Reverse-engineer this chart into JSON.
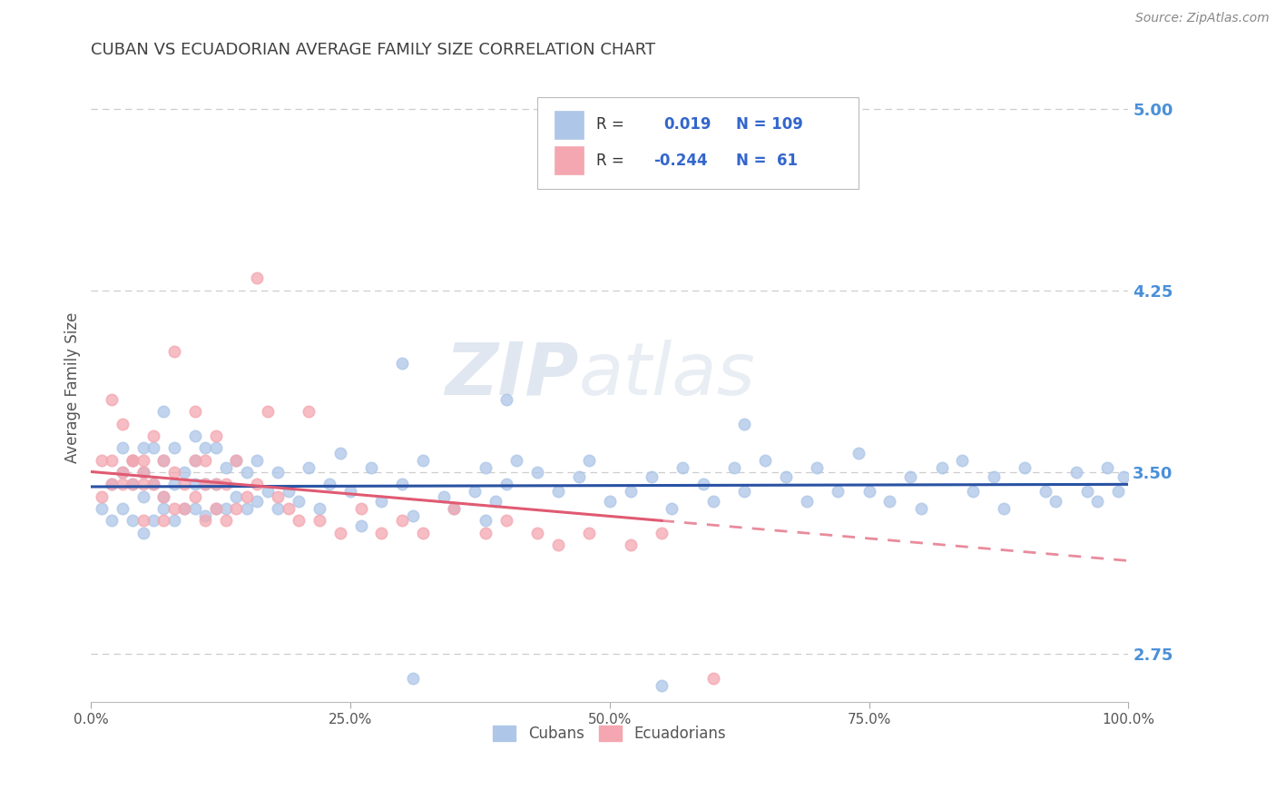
{
  "title": "CUBAN VS ECUADORIAN AVERAGE FAMILY SIZE CORRELATION CHART",
  "source_text": "Source: ZipAtlas.com",
  "ylabel": "Average Family Size",
  "xlim": [
    0.0,
    1.0
  ],
  "ylim": [
    2.55,
    5.15
  ],
  "yticks": [
    2.75,
    3.5,
    4.25,
    5.0
  ],
  "xticks": [
    0.0,
    0.25,
    0.5,
    0.75,
    1.0
  ],
  "xticklabels": [
    "0.0%",
    "25.0%",
    "50.0%",
    "75.0%",
    "100.0%"
  ],
  "yticklabels_right": [
    "2.75",
    "3.50",
    "4.25",
    "5.00"
  ],
  "cuban_R": 0.019,
  "cuban_N": 109,
  "ecuadorian_R": -0.244,
  "ecuadorian_N": 61,
  "cuban_color": "#aec6e8",
  "ecuadorian_color": "#f4a7b0",
  "cuban_line_color": "#2952a3",
  "ecuadorian_line_color": "#e05a72",
  "background_color": "#ffffff",
  "grid_color": "#c8c8c8",
  "title_color": "#404040",
  "axis_label_color": "#555555",
  "right_tick_color": "#4a90d9",
  "watermark_color": "#d0dce8",
  "legend_R_color": "#3366cc",
  "legend_text_color": "#333333",
  "cuban_scatter_x": [
    0.01,
    0.02,
    0.02,
    0.03,
    0.03,
    0.03,
    0.04,
    0.04,
    0.04,
    0.05,
    0.05,
    0.05,
    0.05,
    0.06,
    0.06,
    0.06,
    0.07,
    0.07,
    0.07,
    0.07,
    0.08,
    0.08,
    0.08,
    0.09,
    0.09,
    0.1,
    0.1,
    0.1,
    0.1,
    0.11,
    0.11,
    0.11,
    0.12,
    0.12,
    0.12,
    0.13,
    0.13,
    0.14,
    0.14,
    0.15,
    0.15,
    0.16,
    0.16,
    0.17,
    0.18,
    0.18,
    0.19,
    0.2,
    0.21,
    0.22,
    0.23,
    0.24,
    0.25,
    0.26,
    0.27,
    0.28,
    0.3,
    0.31,
    0.32,
    0.34,
    0.35,
    0.37,
    0.38,
    0.39,
    0.4,
    0.41,
    0.43,
    0.45,
    0.47,
    0.48,
    0.5,
    0.52,
    0.54,
    0.56,
    0.57,
    0.59,
    0.6,
    0.62,
    0.63,
    0.65,
    0.67,
    0.69,
    0.7,
    0.72,
    0.74,
    0.75,
    0.77,
    0.79,
    0.8,
    0.82,
    0.84,
    0.85,
    0.87,
    0.88,
    0.9,
    0.92,
    0.93,
    0.95,
    0.96,
    0.97,
    0.98,
    0.99,
    0.995,
    0.3,
    0.55,
    0.4,
    0.38,
    0.63,
    0.31
  ],
  "cuban_scatter_y": [
    3.35,
    3.3,
    3.45,
    3.35,
    3.5,
    3.6,
    3.3,
    3.45,
    3.55,
    3.25,
    3.4,
    3.5,
    3.6,
    3.3,
    3.45,
    3.6,
    3.35,
    3.4,
    3.55,
    3.75,
    3.3,
    3.45,
    3.6,
    3.35,
    3.5,
    3.35,
    3.45,
    3.55,
    3.65,
    3.32,
    3.45,
    3.6,
    3.35,
    3.45,
    3.6,
    3.35,
    3.52,
    3.4,
    3.55,
    3.35,
    3.5,
    3.38,
    3.55,
    3.42,
    3.35,
    3.5,
    3.42,
    3.38,
    3.52,
    3.35,
    3.45,
    3.58,
    3.42,
    3.28,
    3.52,
    3.38,
    3.45,
    3.32,
    3.55,
    3.4,
    3.35,
    3.42,
    3.52,
    3.38,
    3.45,
    3.55,
    3.5,
    3.42,
    3.48,
    3.55,
    3.38,
    3.42,
    3.48,
    3.35,
    3.52,
    3.45,
    3.38,
    3.52,
    3.42,
    3.55,
    3.48,
    3.38,
    3.52,
    3.42,
    3.58,
    3.42,
    3.38,
    3.48,
    3.35,
    3.52,
    3.55,
    3.42,
    3.48,
    3.35,
    3.52,
    3.42,
    3.38,
    3.5,
    3.42,
    3.38,
    3.52,
    3.42,
    3.48,
    3.95,
    2.62,
    3.8,
    3.3,
    3.7,
    2.65
  ],
  "ecuadorian_scatter_x": [
    0.01,
    0.01,
    0.02,
    0.02,
    0.02,
    0.03,
    0.03,
    0.03,
    0.04,
    0.04,
    0.04,
    0.05,
    0.05,
    0.05,
    0.05,
    0.06,
    0.06,
    0.07,
    0.07,
    0.07,
    0.08,
    0.08,
    0.08,
    0.09,
    0.09,
    0.1,
    0.1,
    0.1,
    0.11,
    0.11,
    0.11,
    0.12,
    0.12,
    0.12,
    0.13,
    0.13,
    0.14,
    0.14,
    0.15,
    0.16,
    0.16,
    0.17,
    0.18,
    0.19,
    0.2,
    0.21,
    0.22,
    0.24,
    0.26,
    0.28,
    0.3,
    0.32,
    0.35,
    0.38,
    0.4,
    0.43,
    0.45,
    0.48,
    0.52,
    0.55,
    0.6
  ],
  "ecuadorian_scatter_y": [
    3.4,
    3.55,
    3.55,
    3.8,
    3.45,
    3.5,
    3.7,
    3.45,
    3.55,
    3.55,
    3.45,
    3.55,
    3.45,
    3.3,
    3.5,
    3.45,
    3.65,
    3.4,
    3.55,
    3.3,
    3.5,
    4.0,
    3.35,
    3.45,
    3.35,
    3.55,
    3.4,
    3.75,
    3.45,
    3.3,
    3.55,
    3.45,
    3.35,
    3.65,
    3.45,
    3.3,
    3.35,
    3.55,
    3.4,
    3.45,
    4.3,
    3.75,
    3.4,
    3.35,
    3.3,
    3.75,
    3.3,
    3.25,
    3.35,
    3.25,
    3.3,
    3.25,
    3.35,
    3.25,
    3.3,
    3.25,
    3.2,
    3.25,
    3.2,
    3.25,
    2.65
  ]
}
